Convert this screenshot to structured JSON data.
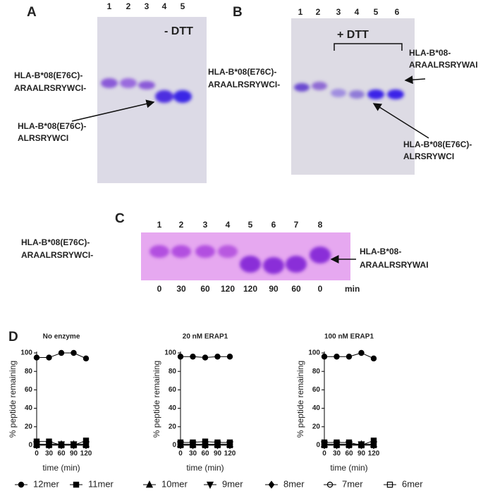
{
  "gels": {
    "a": {
      "panel": "A",
      "lanes": [
        1,
        2,
        3,
        4,
        5
      ],
      "condition": "- DTT",
      "label_top": [
        "HLA-B*08(E76C)-",
        "ARAALRSRYWCI-"
      ],
      "label_bottom": [
        "HLA-B*08(E76C)-",
        "ALRSRYWCI"
      ]
    },
    "b": {
      "panel": "B",
      "lanes": [
        1,
        2,
        3,
        4,
        5,
        6
      ],
      "condition": "+ DTT",
      "label_left": [
        "HLA-B*08(E76C)-",
        "ARAALRSRYWCI-"
      ],
      "label_right": [
        "HLA-B*08-",
        "ARAALRSRYWAI"
      ],
      "label_bottom": [
        "HLA-B*08(E76C)-",
        "ALRSRYWCI"
      ]
    },
    "c": {
      "panel": "C",
      "lanes": [
        1,
        2,
        3,
        4,
        5,
        6,
        7,
        8
      ],
      "times": [
        0,
        30,
        60,
        120,
        120,
        90,
        60,
        0
      ],
      "time_unit": "min",
      "label_left": [
        "HLA-B*08(E76C)-",
        "ARAALRSRYWCI-"
      ],
      "label_right": [
        "HLA-B*08-",
        "ARAALRSRYWAI"
      ]
    }
  },
  "panel_d": "D",
  "chart_data": [
    {
      "type": "line",
      "title": "No enzyme",
      "x_label": "time (min)",
      "y_label": "% peptide remaining",
      "x": [
        0,
        30,
        60,
        90,
        120
      ],
      "xlim": [
        0,
        120
      ],
      "ylim": [
        0,
        100
      ],
      "xticks": [
        0,
        30,
        60,
        90,
        120
      ],
      "yticks": [
        0,
        20,
        40,
        60,
        80,
        100
      ],
      "series": [
        {
          "name": "12mer",
          "marker": "circle",
          "color": "#000000",
          "values": [
            95,
            95,
            100,
            100,
            94
          ]
        },
        {
          "name": "11mer",
          "marker": "square",
          "color": "#000000",
          "values": [
            4,
            4,
            0,
            0,
            5
          ]
        },
        {
          "name": "10mer",
          "marker": "triangle-up",
          "color": "#000000",
          "values": [
            1,
            1,
            1,
            1,
            1
          ]
        },
        {
          "name": "9mer",
          "marker": "triangle-down",
          "color": "#000000",
          "values": [
            1,
            1,
            1,
            1,
            1
          ]
        },
        {
          "name": "8mer",
          "marker": "diamond",
          "color": "#000000",
          "values": [
            0,
            0,
            0,
            0,
            0
          ]
        },
        {
          "name": "7mer",
          "marker": "open-circle",
          "color": "#000000",
          "values": [
            0,
            0,
            0,
            0,
            0
          ]
        },
        {
          "name": "6mer",
          "marker": "open-square",
          "color": "#000000",
          "values": [
            0,
            0,
            0,
            0,
            0
          ]
        }
      ]
    },
    {
      "type": "line",
      "title": "20 nM ERAP1",
      "x_label": "time (min)",
      "y_label": "% peptide remaining",
      "x": [
        0,
        30,
        60,
        90,
        120
      ],
      "xlim": [
        0,
        120
      ],
      "ylim": [
        0,
        100
      ],
      "xticks": [
        0,
        30,
        60,
        90,
        120
      ],
      "yticks": [
        0,
        20,
        40,
        60,
        80,
        100
      ],
      "series": [
        {
          "name": "12mer",
          "marker": "circle",
          "color": "#000000",
          "values": [
            96,
            96,
            95,
            96,
            96
          ]
        },
        {
          "name": "11mer",
          "marker": "square",
          "color": "#000000",
          "values": [
            3,
            3,
            4,
            3,
            3
          ]
        },
        {
          "name": "10mer",
          "marker": "triangle-up",
          "color": "#000000",
          "values": [
            1,
            1,
            1,
            1,
            1
          ]
        },
        {
          "name": "9mer",
          "marker": "triangle-down",
          "color": "#000000",
          "values": [
            1,
            1,
            1,
            1,
            1
          ]
        },
        {
          "name": "8mer",
          "marker": "diamond",
          "color": "#000000",
          "values": [
            0,
            0,
            0,
            0,
            0
          ]
        },
        {
          "name": "7mer",
          "marker": "open-circle",
          "color": "#000000",
          "values": [
            0,
            0,
            0,
            0,
            0
          ]
        },
        {
          "name": "6mer",
          "marker": "open-square",
          "color": "#000000",
          "values": [
            0,
            0,
            0,
            0,
            0
          ]
        }
      ]
    },
    {
      "type": "line",
      "title": "100 nM ERAP1",
      "x_label": "time (min)",
      "y_label": "% peptide remaining",
      "x": [
        0,
        30,
        60,
        90,
        120
      ],
      "xlim": [
        0,
        120
      ],
      "ylim": [
        0,
        100
      ],
      "xticks": [
        0,
        30,
        60,
        90,
        120
      ],
      "yticks": [
        0,
        20,
        40,
        60,
        80,
        100
      ],
      "series": [
        {
          "name": "12mer",
          "marker": "circle",
          "color": "#000000",
          "values": [
            96,
            96,
            96,
            100,
            94
          ]
        },
        {
          "name": "11mer",
          "marker": "square",
          "color": "#000000",
          "values": [
            3,
            3,
            3,
            0,
            5
          ]
        },
        {
          "name": "10mer",
          "marker": "triangle-up",
          "color": "#000000",
          "values": [
            1,
            1,
            1,
            1,
            1
          ]
        },
        {
          "name": "9mer",
          "marker": "triangle-down",
          "color": "#000000",
          "values": [
            1,
            1,
            1,
            1,
            1
          ]
        },
        {
          "name": "8mer",
          "marker": "diamond",
          "color": "#000000",
          "values": [
            0,
            0,
            0,
            0,
            0
          ]
        },
        {
          "name": "7mer",
          "marker": "open-circle",
          "color": "#000000",
          "values": [
            0,
            0,
            0,
            0,
            0
          ]
        },
        {
          "name": "6mer",
          "marker": "open-square",
          "color": "#000000",
          "values": [
            0,
            0,
            0,
            0,
            0
          ]
        }
      ]
    }
  ]
}
